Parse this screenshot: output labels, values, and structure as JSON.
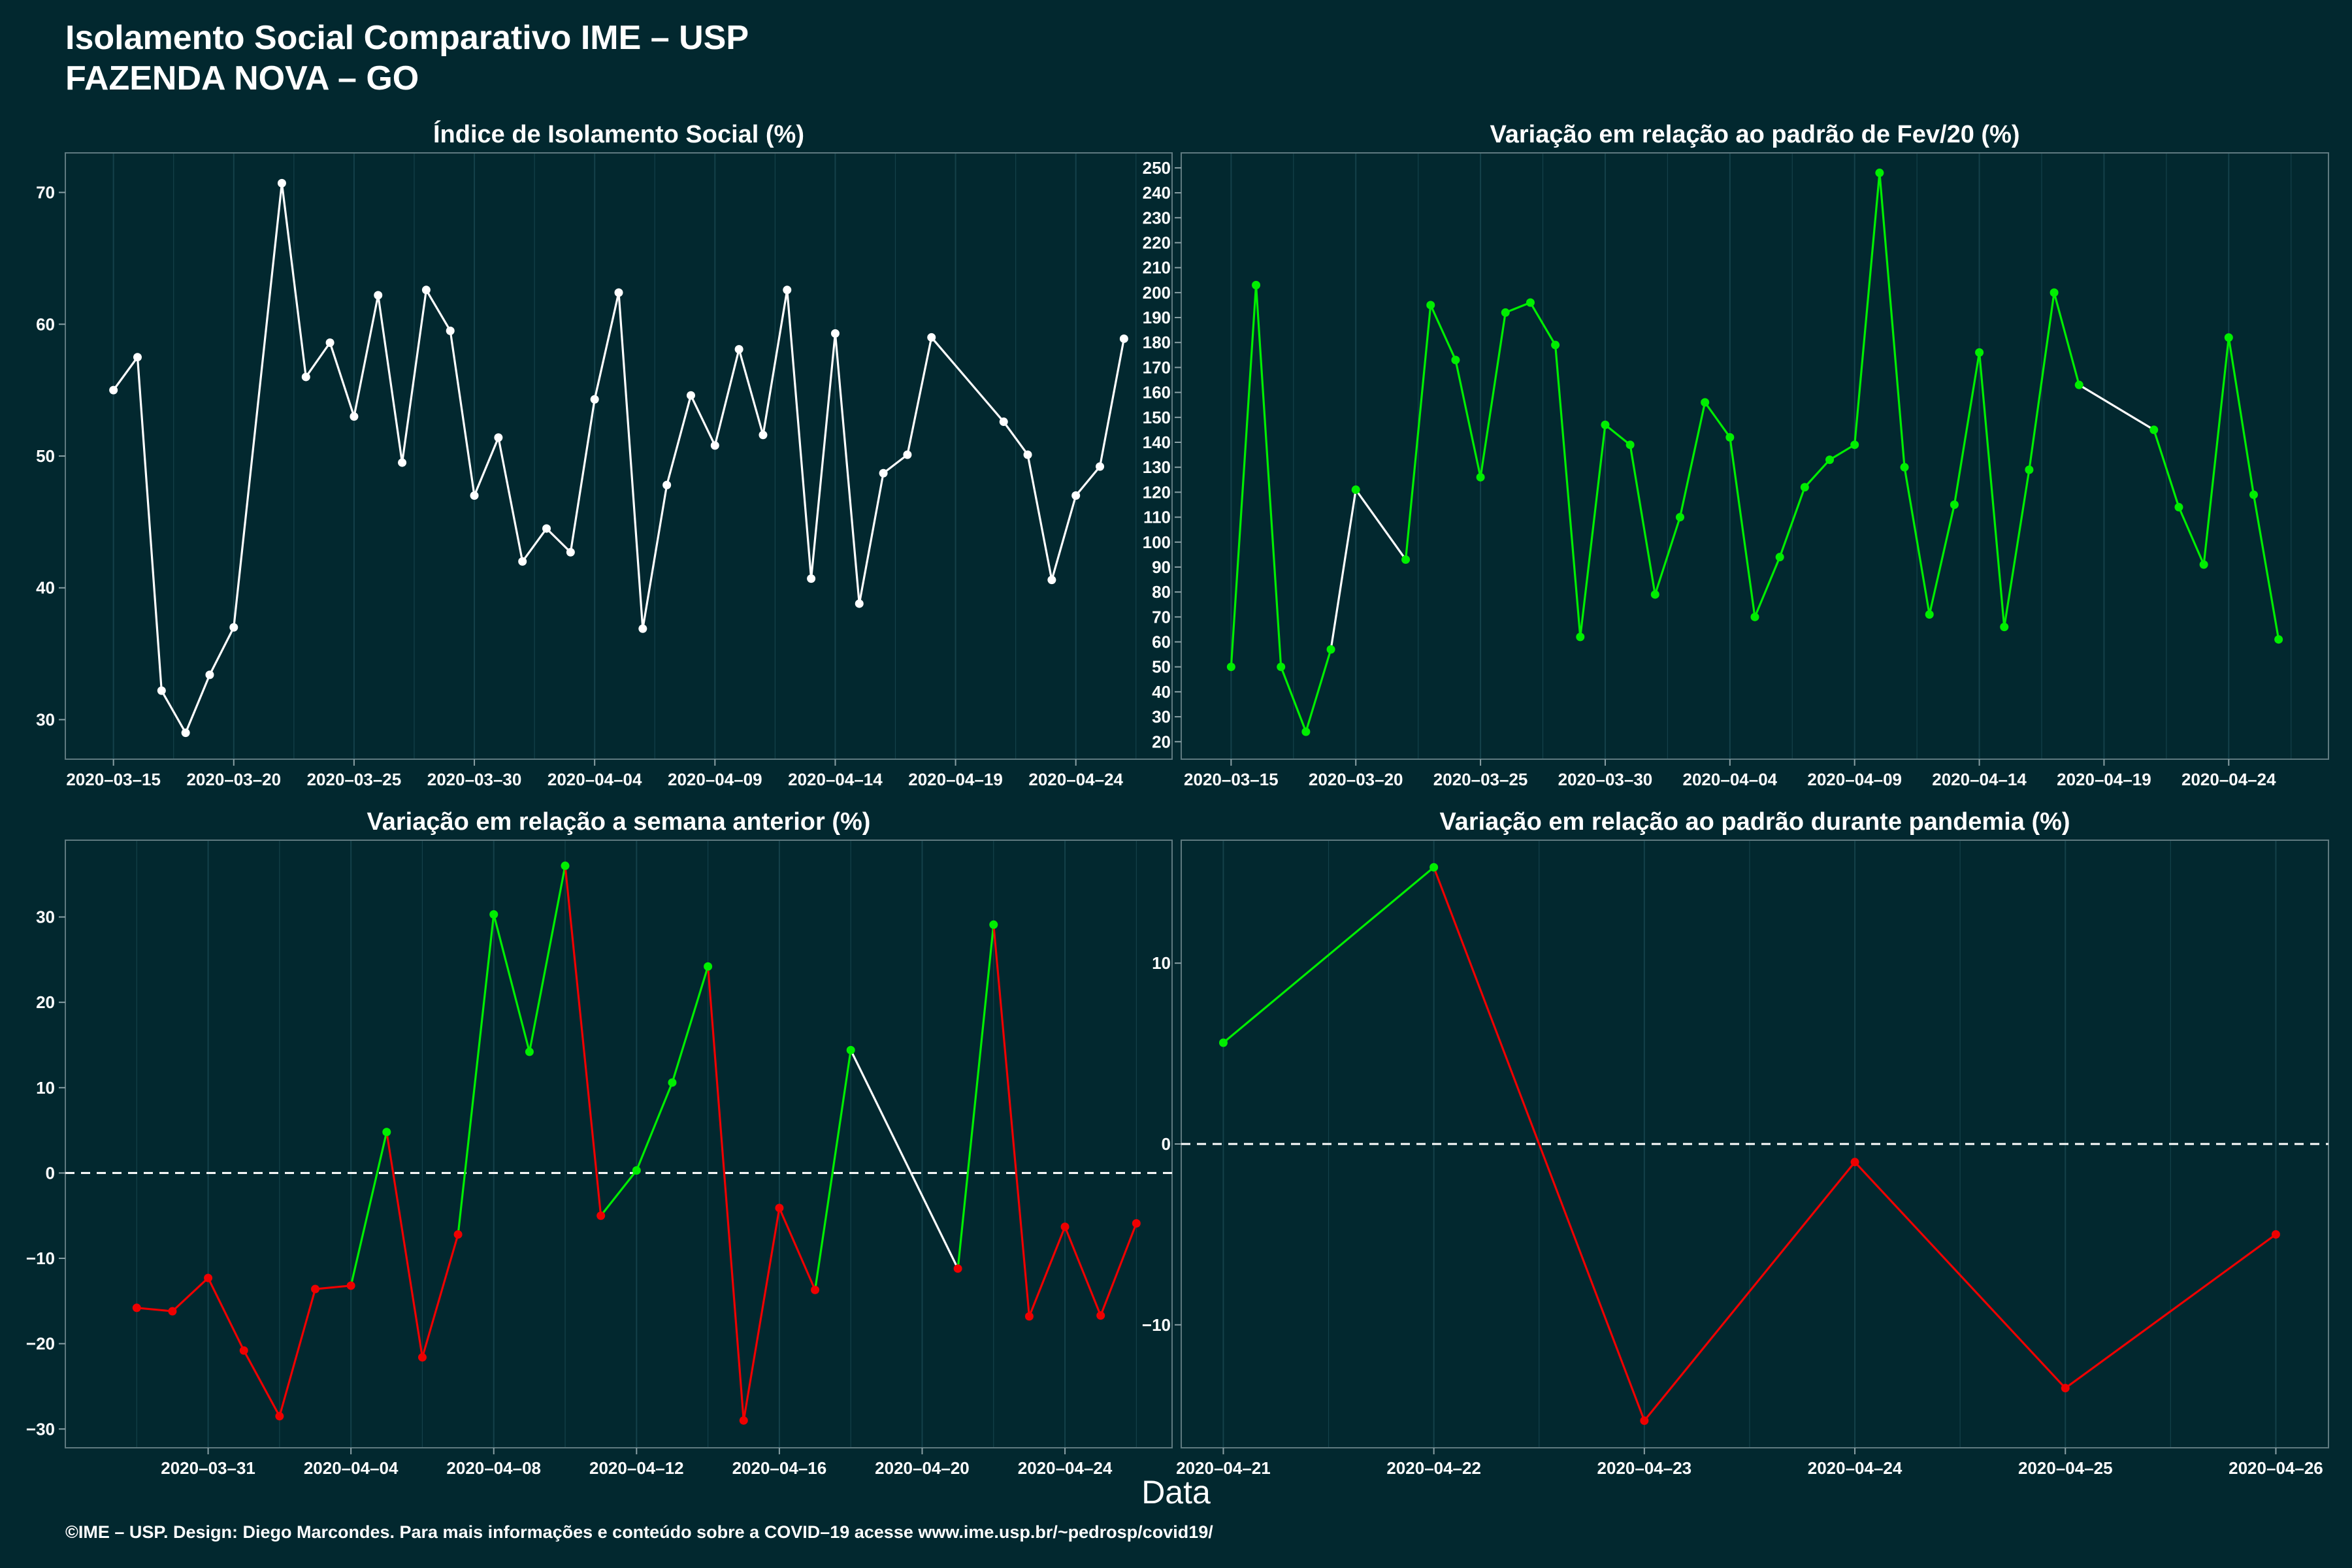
{
  "header": {
    "title": "Isolamento Social Comparativo IME – USP",
    "subtitle": "FAZENDA NOVA – GO"
  },
  "x_axis_label": "Data",
  "footer": "©IME – USP. Design: Diego Marcondes. Para mais informações e conteúdo sobre a COVID–19 acesse www.ime.usp.br/~pedrosp/covid19/",
  "colors": {
    "background": "#02282f",
    "grid": "#14414a",
    "neutral": "#ffffff",
    "positive": "#00ee00",
    "negative": "#ee0000"
  },
  "chart_data": [
    {
      "id": "isolation",
      "type": "line",
      "title": "Índice de Isolamento Social (%)",
      "color_mode": "white",
      "x": [
        "2020-03-15",
        "2020-03-16",
        "2020-03-17",
        "2020-03-18",
        "2020-03-19",
        "2020-03-20",
        "2020-03-22",
        "2020-03-23",
        "2020-03-24",
        "2020-03-25",
        "2020-03-26",
        "2020-03-27",
        "2020-03-28",
        "2020-03-29",
        "2020-03-30",
        "2020-03-31",
        "2020-04-01",
        "2020-04-02",
        "2020-04-03",
        "2020-04-04",
        "2020-04-05",
        "2020-04-06",
        "2020-04-07",
        "2020-04-08",
        "2020-04-09",
        "2020-04-10",
        "2020-04-11",
        "2020-04-12",
        "2020-04-13",
        "2020-04-14",
        "2020-04-15",
        "2020-04-16",
        "2020-04-17",
        "2020-04-18",
        "2020-04-21",
        "2020-04-22",
        "2020-04-23",
        "2020-04-24",
        "2020-04-25",
        "2020-04-26"
      ],
      "y": [
        55.0,
        57.5,
        32.2,
        29.0,
        33.4,
        37.0,
        70.7,
        56.0,
        58.6,
        53.0,
        62.2,
        49.5,
        62.6,
        59.5,
        47.0,
        51.4,
        42.0,
        44.5,
        42.7,
        54.3,
        62.4,
        36.9,
        47.8,
        54.6,
        50.8,
        58.1,
        51.6,
        62.6,
        40.7,
        59.3,
        38.8,
        48.7,
        50.1,
        59.0,
        52.6,
        50.1,
        40.6,
        47.0,
        49.2,
        58.9
      ],
      "xticks": [
        "2020-03-15",
        "2020-03-20",
        "2020-03-25",
        "2020-03-30",
        "2020-04-04",
        "2020-04-09",
        "2020-04-14",
        "2020-04-19",
        "2020-04-24"
      ],
      "yticks": [
        30,
        40,
        50,
        60,
        70
      ],
      "ylim": [
        27,
        73
      ]
    },
    {
      "id": "feb_variation",
      "type": "line",
      "title": "Variação em relação ao padrão de Fev/20 (%)",
      "color_mode": "positive",
      "x": [
        "2020-03-15",
        "2020-03-16",
        "2020-03-17",
        "2020-03-18",
        "2020-03-19",
        "2020-03-20",
        "2020-03-22",
        "2020-03-23",
        "2020-03-24",
        "2020-03-25",
        "2020-03-26",
        "2020-03-27",
        "2020-03-28",
        "2020-03-29",
        "2020-03-30",
        "2020-03-31",
        "2020-04-01",
        "2020-04-02",
        "2020-04-03",
        "2020-04-04",
        "2020-04-05",
        "2020-04-06",
        "2020-04-07",
        "2020-04-08",
        "2020-04-09",
        "2020-04-10",
        "2020-04-11",
        "2020-04-12",
        "2020-04-13",
        "2020-04-14",
        "2020-04-15",
        "2020-04-16",
        "2020-04-17",
        "2020-04-18",
        "2020-04-21",
        "2020-04-22",
        "2020-04-23",
        "2020-04-24",
        "2020-04-25",
        "2020-04-26"
      ],
      "y": [
        50,
        203,
        50,
        24,
        57,
        121,
        93,
        195,
        173,
        126,
        192,
        196,
        179,
        62,
        147,
        139,
        79,
        110,
        156,
        142,
        70,
        94,
        122,
        133,
        139,
        248,
        130,
        71,
        115,
        176,
        66,
        129,
        200,
        163,
        145,
        114,
        91,
        182,
        119,
        61
      ],
      "segment_colors": [
        "positive",
        "positive",
        "positive",
        "positive",
        "neutral",
        "neutral",
        "positive",
        "positive",
        "positive",
        "positive",
        "positive",
        "positive",
        "positive",
        "positive",
        "positive",
        "positive",
        "positive",
        "positive",
        "positive",
        "positive",
        "positive",
        "positive",
        "positive",
        "positive",
        "positive",
        "positive",
        "positive",
        "positive",
        "positive",
        "positive",
        "positive",
        "positive",
        "positive",
        "neutral",
        "positive",
        "positive",
        "positive",
        "positive",
        "positive"
      ],
      "xticks": [
        "2020-03-15",
        "2020-03-20",
        "2020-03-25",
        "2020-03-30",
        "2020-04-04",
        "2020-04-09",
        "2020-04-14",
        "2020-04-19",
        "2020-04-24"
      ],
      "yticks": [
        20,
        30,
        40,
        50,
        60,
        70,
        80,
        90,
        100,
        110,
        120,
        130,
        140,
        150,
        160,
        170,
        180,
        190,
        200,
        210,
        220,
        230,
        240,
        250
      ],
      "ylim": [
        13,
        256
      ]
    },
    {
      "id": "week_variation",
      "type": "line",
      "title": "Variação em relação a semana anterior (%)",
      "color_mode": "sign",
      "x": [
        "2020-03-29",
        "2020-03-30",
        "2020-03-31",
        "2020-04-01",
        "2020-04-02",
        "2020-04-03",
        "2020-04-04",
        "2020-04-05",
        "2020-04-06",
        "2020-04-07",
        "2020-04-08",
        "2020-04-09",
        "2020-04-10",
        "2020-04-11",
        "2020-04-12",
        "2020-04-13",
        "2020-04-14",
        "2020-04-15",
        "2020-04-16",
        "2020-04-17",
        "2020-04-18",
        "2020-04-21",
        "2020-04-22",
        "2020-04-23",
        "2020-04-24",
        "2020-04-25",
        "2020-04-26"
      ],
      "y": [
        -15.8,
        -16.2,
        -12.3,
        -20.8,
        -28.5,
        -13.6,
        -13.2,
        4.8,
        -21.6,
        -7.2,
        30.3,
        14.2,
        36.0,
        -5.0,
        0.3,
        10.6,
        24.2,
        -29.0,
        -4.1,
        -13.7,
        14.4,
        -11.2,
        29.1,
        -16.8,
        -6.3,
        -16.7,
        -5.9
      ],
      "segment_colors": [
        "negative",
        "negative",
        "negative",
        "negative",
        "negative",
        "negative",
        "positive",
        "negative",
        "negative",
        "positive",
        "positive",
        "positive",
        "negative",
        "positive",
        "positive",
        "positive",
        "negative",
        "negative",
        "negative",
        "positive",
        "neutral",
        "positive",
        "negative",
        "negative",
        "negative",
        "negative"
      ],
      "xticks": [
        "2020-03-31",
        "2020-04-04",
        "2020-04-08",
        "2020-04-12",
        "2020-04-16",
        "2020-04-20",
        "2020-04-24"
      ],
      "yticks": [
        -30,
        -20,
        -10,
        0,
        10,
        20,
        30
      ],
      "ylim": [
        -32.2,
        39.0
      ],
      "reference_line": 0
    },
    {
      "id": "pandemic_variation",
      "type": "line",
      "title": "Variação em relação ao padrão durante pandemia (%)",
      "color_mode": "sign",
      "x": [
        "2020-04-21",
        "2020-04-22",
        "2020-04-23",
        "2020-04-24",
        "2020-04-25",
        "2020-04-26"
      ],
      "y": [
        5.6,
        15.3,
        -15.3,
        -1.0,
        -13.5,
        -5.0
      ],
      "segment_colors": [
        "positive",
        "negative",
        "negative",
        "negative",
        "negative"
      ],
      "xticks": [
        "2020-04-21",
        "2020-04-22",
        "2020-04-23",
        "2020-04-24",
        "2020-04-25",
        "2020-04-26"
      ],
      "yticks": [
        -10,
        0,
        10
      ],
      "ylim": [
        -16.8,
        16.8
      ],
      "reference_line": 0
    }
  ]
}
